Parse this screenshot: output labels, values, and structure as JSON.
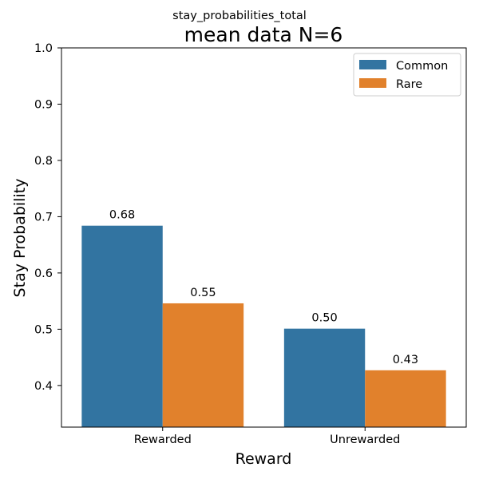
{
  "chart_data": {
    "type": "bar",
    "suptitle": "stay_probabilities_total",
    "title": "mean data N=6",
    "xlabel": "Reward",
    "ylabel": "Stay Probability",
    "categories": [
      "Rewarded",
      "Unrewarded"
    ],
    "series": [
      {
        "name": "Common",
        "color": "#3274a1",
        "values": [
          0.684,
          0.501
        ]
      },
      {
        "name": "Rare",
        "color": "#e1812c",
        "values": [
          0.546,
          0.427
        ]
      }
    ],
    "data_labels": [
      [
        "0.68",
        "0.50"
      ],
      [
        "0.55",
        "0.43"
      ]
    ],
    "ylim": [
      0.326,
      1.0
    ],
    "yticks": [
      0.4,
      0.5,
      0.6,
      0.7,
      0.8,
      0.9,
      1.0
    ],
    "ytick_labels": [
      "0.4",
      "0.5",
      "0.6",
      "0.7",
      "0.8",
      "0.9",
      "1.0"
    ],
    "legend_position": "top-right",
    "grid": false
  }
}
